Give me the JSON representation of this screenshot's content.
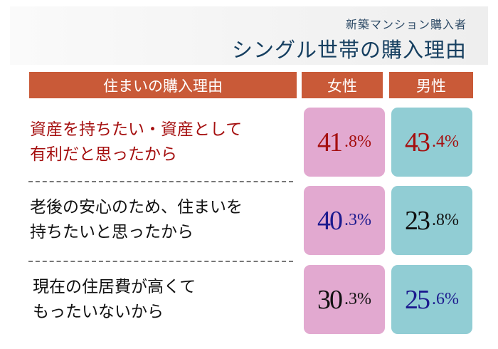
{
  "header": {
    "subtitle": "新築マンション購入者",
    "title": "シングル世帯の購入理由"
  },
  "table": {
    "headers": [
      "住まいの購入理由",
      "女性",
      "男性"
    ],
    "rows": [
      {
        "reason_line1": "資産を持ちたい・資産として",
        "reason_line2": "有利だと思ったから",
        "female_int": "41",
        "female_dec": ".8%",
        "male_int": "43",
        "male_dec": ".4%"
      },
      {
        "reason_line1": "老後の安心のため、住まいを",
        "reason_line2": "持ちたいと思ったから",
        "female_int": "40",
        "female_dec": ".3%",
        "male_int": "23",
        "male_dec": ".8%"
      },
      {
        "reason_line1": "現在の住居費が高くて",
        "reason_line2": "もったいないから",
        "female_int": "30",
        "female_dec": ".3%",
        "male_int": "25",
        "male_dec": ".6%"
      }
    ]
  },
  "colors": {
    "header_bg": "#c95a38",
    "female": "#e2a9d0",
    "male": "#91cdd4",
    "red": "#a50f0f",
    "navy": "#1c1a8e",
    "black": "#111111"
  }
}
